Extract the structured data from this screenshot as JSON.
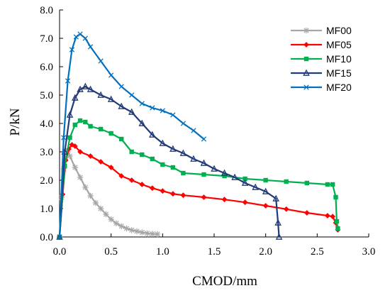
{
  "chart_data": {
    "type": "line",
    "xlabel": "CMOD/mm",
    "ylabel": "P/kN",
    "xlim": [
      0,
      3.0
    ],
    "ylim": [
      0,
      8.0
    ],
    "x_ticks": [
      "0.0",
      "0.5",
      "1.0",
      "1.5",
      "2.0",
      "2.5",
      "3.0"
    ],
    "y_ticks": [
      "0.0",
      "1.0",
      "2.0",
      "3.0",
      "4.0",
      "5.0",
      "6.0",
      "7.0",
      "8.0"
    ],
    "grid": false,
    "legend_position": "top-right",
    "series": [
      {
        "name": "MF00",
        "color": "#a6a6a6",
        "marker": "asterisk",
        "points": [
          [
            0.0,
            0.0
          ],
          [
            0.02,
            1.4
          ],
          [
            0.04,
            2.4
          ],
          [
            0.06,
            2.8
          ],
          [
            0.08,
            3.0
          ],
          [
            0.1,
            2.85
          ],
          [
            0.15,
            2.45
          ],
          [
            0.2,
            2.1
          ],
          [
            0.25,
            1.75
          ],
          [
            0.3,
            1.45
          ],
          [
            0.35,
            1.2
          ],
          [
            0.4,
            1.0
          ],
          [
            0.45,
            0.8
          ],
          [
            0.5,
            0.62
          ],
          [
            0.55,
            0.48
          ],
          [
            0.6,
            0.38
          ],
          [
            0.65,
            0.3
          ],
          [
            0.7,
            0.24
          ],
          [
            0.75,
            0.2
          ],
          [
            0.8,
            0.16
          ],
          [
            0.85,
            0.13
          ],
          [
            0.9,
            0.11
          ],
          [
            0.95,
            0.1
          ]
        ]
      },
      {
        "name": "MF05",
        "color": "#ff0000",
        "marker": "diamond",
        "points": [
          [
            0.0,
            0.0
          ],
          [
            0.03,
            1.5
          ],
          [
            0.06,
            2.7
          ],
          [
            0.09,
            3.1
          ],
          [
            0.12,
            3.25
          ],
          [
            0.15,
            3.2
          ],
          [
            0.2,
            3.0
          ],
          [
            0.3,
            2.85
          ],
          [
            0.4,
            2.65
          ],
          [
            0.5,
            2.45
          ],
          [
            0.6,
            2.15
          ],
          [
            0.7,
            2.0
          ],
          [
            0.8,
            1.85
          ],
          [
            0.9,
            1.72
          ],
          [
            1.0,
            1.62
          ],
          [
            1.1,
            1.52
          ],
          [
            1.2,
            1.47
          ],
          [
            1.4,
            1.4
          ],
          [
            1.6,
            1.32
          ],
          [
            1.8,
            1.22
          ],
          [
            2.0,
            1.1
          ],
          [
            2.2,
            0.98
          ],
          [
            2.4,
            0.85
          ],
          [
            2.6,
            0.75
          ],
          [
            2.65,
            0.72
          ],
          [
            2.68,
            0.5
          ],
          [
            2.7,
            0.25
          ]
        ]
      },
      {
        "name": "MF10",
        "color": "#00b050",
        "marker": "square",
        "points": [
          [
            0.0,
            0.0
          ],
          [
            0.05,
            2.5
          ],
          [
            0.1,
            3.5
          ],
          [
            0.15,
            3.95
          ],
          [
            0.2,
            4.1
          ],
          [
            0.25,
            4.05
          ],
          [
            0.3,
            3.9
          ],
          [
            0.4,
            3.8
          ],
          [
            0.5,
            3.65
          ],
          [
            0.6,
            3.45
          ],
          [
            0.7,
            3.0
          ],
          [
            0.8,
            2.9
          ],
          [
            0.9,
            2.75
          ],
          [
            1.0,
            2.55
          ],
          [
            1.1,
            2.45
          ],
          [
            1.2,
            2.25
          ],
          [
            1.4,
            2.2
          ],
          [
            1.6,
            2.15
          ],
          [
            1.8,
            2.05
          ],
          [
            2.0,
            2.0
          ],
          [
            2.2,
            1.95
          ],
          [
            2.4,
            1.9
          ],
          [
            2.6,
            1.85
          ],
          [
            2.65,
            1.85
          ],
          [
            2.68,
            1.4
          ],
          [
            2.69,
            0.55
          ],
          [
            2.7,
            0.3
          ]
        ]
      },
      {
        "name": "MF15",
        "color": "#203a7a",
        "marker": "triangle",
        "points": [
          [
            0.0,
            0.0
          ],
          [
            0.05,
            3.0
          ],
          [
            0.1,
            4.3
          ],
          [
            0.15,
            4.9
          ],
          [
            0.2,
            5.2
          ],
          [
            0.25,
            5.3
          ],
          [
            0.3,
            5.2
          ],
          [
            0.4,
            5.0
          ],
          [
            0.5,
            4.85
          ],
          [
            0.6,
            4.6
          ],
          [
            0.7,
            4.4
          ],
          [
            0.8,
            4.0
          ],
          [
            0.9,
            3.6
          ],
          [
            1.0,
            3.3
          ],
          [
            1.1,
            3.1
          ],
          [
            1.2,
            2.95
          ],
          [
            1.3,
            2.75
          ],
          [
            1.4,
            2.6
          ],
          [
            1.5,
            2.4
          ],
          [
            1.6,
            2.25
          ],
          [
            1.7,
            2.1
          ],
          [
            1.8,
            1.9
          ],
          [
            1.9,
            1.75
          ],
          [
            2.0,
            1.6
          ],
          [
            2.1,
            1.35
          ],
          [
            2.12,
            0.5
          ],
          [
            2.13,
            0.0
          ]
        ]
      },
      {
        "name": "MF20",
        "color": "#0070c0",
        "marker": "x",
        "points": [
          [
            0.0,
            0.0
          ],
          [
            0.04,
            3.5
          ],
          [
            0.08,
            5.5
          ],
          [
            0.12,
            6.6
          ],
          [
            0.16,
            7.05
          ],
          [
            0.2,
            7.15
          ],
          [
            0.25,
            7.0
          ],
          [
            0.3,
            6.7
          ],
          [
            0.4,
            6.2
          ],
          [
            0.5,
            5.7
          ],
          [
            0.6,
            5.3
          ],
          [
            0.7,
            5.0
          ],
          [
            0.8,
            4.7
          ],
          [
            0.9,
            4.55
          ],
          [
            1.0,
            4.45
          ],
          [
            1.1,
            4.3
          ],
          [
            1.2,
            4.0
          ],
          [
            1.3,
            3.75
          ],
          [
            1.4,
            3.45
          ]
        ]
      }
    ]
  }
}
